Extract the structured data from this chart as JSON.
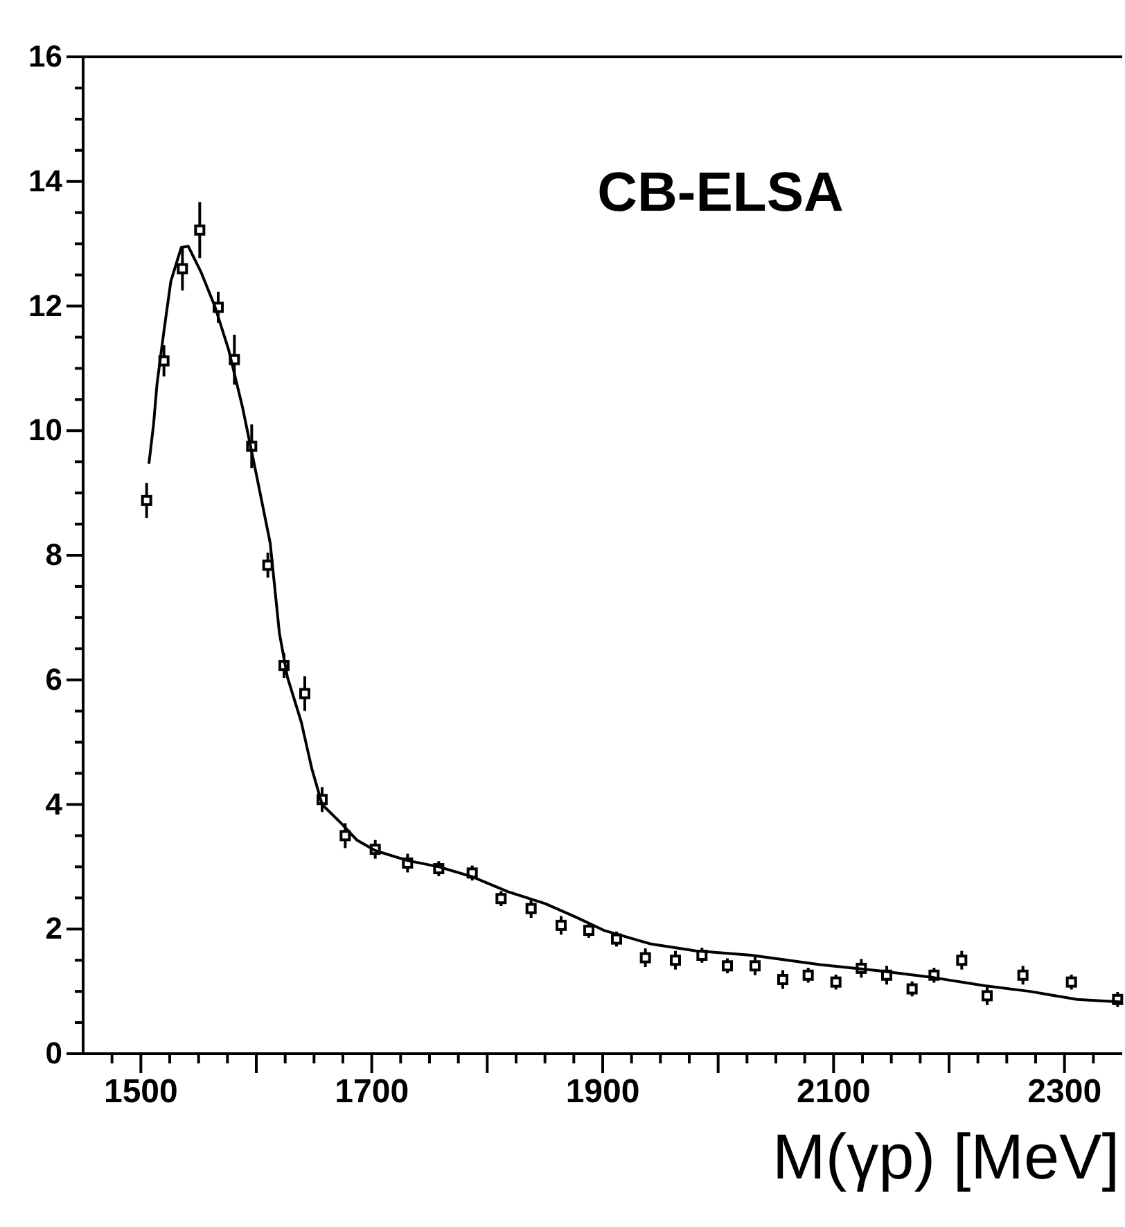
{
  "chart_data": {
    "type": "scatter",
    "xlabel": "M(γp) [MeV]",
    "annotations": [
      "CB-ELSA"
    ],
    "xlim": [
      1450,
      2350
    ],
    "ylim": [
      0,
      16
    ],
    "xticks": [
      {
        "value": 1475,
        "label": null
      },
      {
        "value": 1500,
        "label": "1500"
      },
      {
        "value": 1525,
        "label": null
      },
      {
        "value": 1550,
        "label": null
      },
      {
        "value": 1575,
        "label": null
      },
      {
        "value": 1600,
        "label": null
      },
      {
        "value": 1625,
        "label": null
      },
      {
        "value": 1650,
        "label": null
      },
      {
        "value": 1675,
        "label": null
      },
      {
        "value": 1700,
        "label": "1700"
      },
      {
        "value": 1725,
        "label": null
      },
      {
        "value": 1750,
        "label": null
      },
      {
        "value": 1775,
        "label": null
      },
      {
        "value": 1800,
        "label": null
      },
      {
        "value": 1825,
        "label": null
      },
      {
        "value": 1850,
        "label": null
      },
      {
        "value": 1875,
        "label": null
      },
      {
        "value": 1900,
        "label": "1900"
      },
      {
        "value": 1925,
        "label": null
      },
      {
        "value": 1950,
        "label": null
      },
      {
        "value": 1975,
        "label": null
      },
      {
        "value": 2000,
        "label": null
      },
      {
        "value": 2025,
        "label": null
      },
      {
        "value": 2050,
        "label": null
      },
      {
        "value": 2075,
        "label": null
      },
      {
        "value": 2100,
        "label": "2100"
      },
      {
        "value": 2125,
        "label": null
      },
      {
        "value": 2150,
        "label": null
      },
      {
        "value": 2175,
        "label": null
      },
      {
        "value": 2200,
        "label": null
      },
      {
        "value": 2225,
        "label": null
      },
      {
        "value": 2250,
        "label": null
      },
      {
        "value": 2275,
        "label": null
      },
      {
        "value": 2300,
        "label": "2300"
      },
      {
        "value": 2325,
        "label": null
      }
    ],
    "yticks": [
      0,
      {
        "value": 0.5,
        "label": null
      },
      {
        "value": 1,
        "label": null
      },
      {
        "value": 1.5,
        "label": null
      },
      2,
      {
        "value": 2.5,
        "label": null
      },
      {
        "value": 3,
        "label": null
      },
      {
        "value": 3.5,
        "label": null
      },
      4,
      {
        "value": 4.5,
        "label": null
      },
      {
        "value": 5,
        "label": null
      },
      {
        "value": 5.5,
        "label": null
      },
      6,
      {
        "value": 6.5,
        "label": null
      },
      {
        "value": 7,
        "label": null
      },
      {
        "value": 7.5,
        "label": null
      },
      8,
      {
        "value": 8.5,
        "label": null
      },
      {
        "value": 9,
        "label": null
      },
      {
        "value": 9.5,
        "label": null
      },
      10,
      {
        "value": 10.5,
        "label": null
      },
      {
        "value": 11,
        "label": null
      },
      {
        "value": 11.5,
        "label": null
      },
      12,
      {
        "value": 12.5,
        "label": null
      },
      {
        "value": 13,
        "label": null
      },
      {
        "value": 13.5,
        "label": null
      },
      14,
      {
        "value": 14.5,
        "label": null
      },
      {
        "value": 15,
        "label": null
      },
      {
        "value": 15.5,
        "label": null
      },
      16
    ],
    "series": [
      {
        "color": "#000000",
        "marker": "square",
        "x": [
          1505,
          1520,
          1536,
          1551,
          1567,
          1581,
          1596,
          1610,
          1624,
          1642,
          1657,
          1677,
          1703,
          1731,
          1758,
          1787,
          1812,
          1838,
          1864,
          1888,
          1912,
          1937,
          1963,
          1986,
          2008,
          2032,
          2056,
          2078,
          2102,
          2124,
          2146,
          2168,
          2187,
          2211,
          2233,
          2264,
          2306,
          2346
        ],
        "values": [
          8.88,
          11.12,
          12.6,
          13.22,
          11.98,
          11.14,
          9.75,
          7.84,
          6.23,
          5.78,
          4.08,
          3.5,
          3.28,
          3.06,
          2.97,
          2.9,
          2.49,
          2.33,
          2.06,
          1.98,
          1.84,
          1.54,
          1.5,
          1.58,
          1.41,
          1.41,
          1.19,
          1.26,
          1.15,
          1.37,
          1.26,
          1.04,
          1.26,
          1.5,
          0.93,
          1.26,
          1.15,
          0.87
        ],
        "errors": [
          0.28,
          0.25,
          0.35,
          0.45,
          0.25,
          0.4,
          0.35,
          0.2,
          0.2,
          0.28,
          0.2,
          0.2,
          0.15,
          0.15,
          0.12,
          0.12,
          0.12,
          0.15,
          0.15,
          0.12,
          0.12,
          0.15,
          0.15,
          0.12,
          0.12,
          0.15,
          0.15,
          0.12,
          0.12,
          0.15,
          0.15,
          0.12,
          0.12,
          0.15,
          0.15,
          0.15,
          0.12,
          0.12
        ]
      },
      {
        "type": "line",
        "color": "#000000",
        "marker": "none",
        "line_style": "solid",
        "x": [
          1507,
          1511,
          1514,
          1520,
          1526,
          1535,
          1541,
          1552,
          1564,
          1576,
          1588,
          1600,
          1612,
          1620,
          1627,
          1639,
          1648,
          1657,
          1674,
          1687,
          1703,
          1731,
          1758,
          1787,
          1818,
          1850,
          1877,
          1901,
          1942,
          1981,
          2029,
          2088,
          2140,
          2187,
          2231,
          2270,
          2311,
          2350
        ],
        "values": [
          9.47,
          10.1,
          10.75,
          11.6,
          12.4,
          12.94,
          12.96,
          12.55,
          12.0,
          11.3,
          10.38,
          9.3,
          8.2,
          6.75,
          6.04,
          5.32,
          4.58,
          4.0,
          3.69,
          3.43,
          3.26,
          3.1,
          3.0,
          2.84,
          2.6,
          2.41,
          2.19,
          1.98,
          1.76,
          1.65,
          1.58,
          1.43,
          1.33,
          1.22,
          1.09,
          1.0,
          0.87,
          0.83
        ]
      }
    ]
  }
}
